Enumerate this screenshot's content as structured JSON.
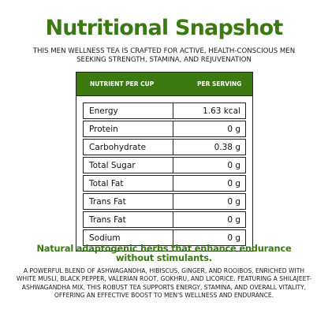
{
  "header": {
    "title": "Nutritional Snapshot",
    "subtitle": "THIS MEN WELLNESS TEA IS CRAFTED FOR ACTIVE, HEALTH-CONSCIOUS MEN SEEKING STRENGTH, STAMINA, AND REJUVENATION"
  },
  "table": {
    "col_nutrient": "NUTRIENT PER CUP",
    "col_serving": "PER SERVING",
    "rows": [
      {
        "name": "Energy",
        "value": "1.63 kcal"
      },
      {
        "name": "Protein",
        "value": "0 g"
      },
      {
        "name": "Carbohydrate",
        "value": "0.38 g"
      },
      {
        "name": "Total Sugar",
        "value": "0 g"
      },
      {
        "name": "Total Fat",
        "value": "0 g"
      },
      {
        "name": "Trans Fat",
        "value": "0 g"
      },
      {
        "name": "Trans Fat",
        "value": "0 g"
      },
      {
        "name": "Sodium",
        "value": "0 g"
      }
    ]
  },
  "footer": {
    "tagline": "Natural adaptogenic herbs that enhance endurance without stimulants.",
    "description": "A POWERFUL BLEND OF ASHWAGANDHA, HIBISCUS, GINGER, AND ROOIBOS, ENRICHED WITH WHITE MUSLI, BLACK PEPPER, VALERIAN ROOT, GOKHRU, AND LICORICE. FEATURING A SHILAJEET-ASHWAGANDHA MIX, THIS ROBUST TEA SUPPORTS ENERGY, STAMINA, AND OVERALL VITALITY, OFFERING AN EFFECTIVE BOOST TO MEN'S WELLNESS AND ENDURANCE."
  },
  "colors": {
    "accent_green": "#3a7a10",
    "text": "#111111",
    "border": "#222222",
    "background": "#ffffff"
  }
}
